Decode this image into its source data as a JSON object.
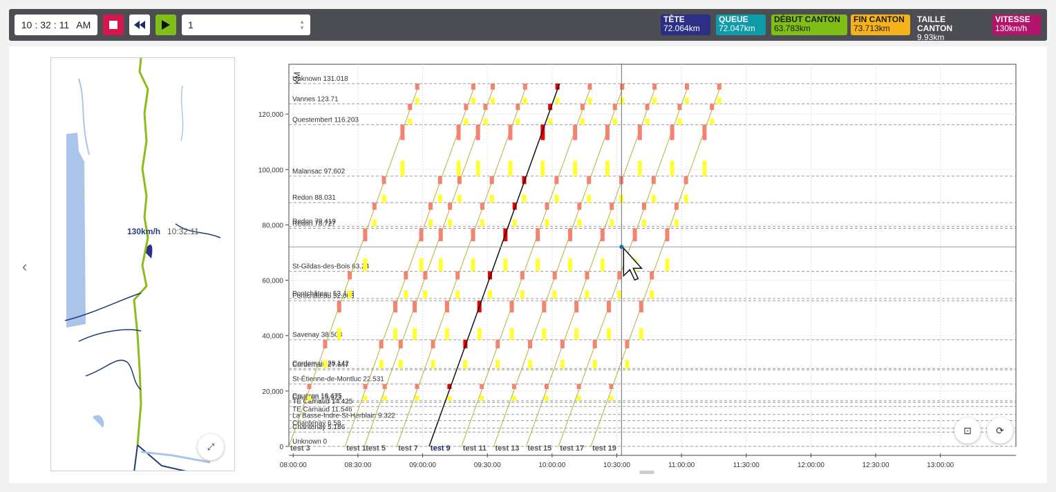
{
  "topbar": {
    "time": {
      "h": "10",
      "m": "32",
      "s": "11",
      "ampm": "AM"
    },
    "speed_value": "1",
    "badges": [
      {
        "label": "TÊTE",
        "value": "72.064km",
        "color": "#2b2f86"
      },
      {
        "label": "QUEUE",
        "value": "72.047km",
        "color": "#0f9aa8"
      },
      {
        "label": "DÉBUT CANTON",
        "value": "63.783km",
        "color": "#7fbf18",
        "text": "#1a1a1a"
      },
      {
        "label": "FIN CANTON",
        "value": "73.713km",
        "color": "#f6b21a",
        "text": "#1a1a1a"
      },
      {
        "label": "TAILLE CANTON",
        "value": "9.93km",
        "color": "transparent"
      },
      {
        "label": "VITESSE",
        "value": "130km/h",
        "color": "#b3156d"
      }
    ]
  },
  "map": {
    "speed": "130km/h",
    "time": "10:32:11"
  },
  "chart_data": {
    "type": "line",
    "ylabel": "KM",
    "ylim": [
      0,
      138000
    ],
    "yticks": [
      "0",
      "20,000",
      "40,000",
      "60,000",
      "80,000",
      "100,000",
      "120,000"
    ],
    "xticks": [
      "08:00:00",
      "08:30:00",
      "09:00:00",
      "09:30:00",
      "10:00:00",
      "10:30:00",
      "11:00:00",
      "11:30:00",
      "12:00:00",
      "12:30:00",
      "13:00:00"
    ],
    "xlim_minutes": [
      478,
      815
    ],
    "stations": [
      {
        "label": "Unknown 131.018",
        "km": 131.018
      },
      {
        "label": "Vannes 123.71",
        "km": 123.71
      },
      {
        "label": "Questembert 116.203",
        "km": 116.203
      },
      {
        "label": "Malansac 97.602",
        "km": 97.602
      },
      {
        "label": "Redon 88.031",
        "km": 88.031
      },
      {
        "label": "Redon 79.419",
        "km": 79.419
      },
      {
        "label": "Redon 78.727",
        "km": 78.727
      },
      {
        "label": "St-Gildas-des-Bois 63.24",
        "km": 63.24
      },
      {
        "label": "Pontchâteau 53.412",
        "km": 53.412
      },
      {
        "label": "Pontchâteau 52.603",
        "km": 52.603
      },
      {
        "label": "Savenay 38.508",
        "km": 38.508
      },
      {
        "label": "Cordemais 28.142",
        "km": 28.142
      },
      {
        "label": "Cordemais 27.647",
        "km": 27.647
      },
      {
        "label": "St-Étienne-de-Montluc 22.531",
        "km": 22.531
      },
      {
        "label": "Couëron 16.475",
        "km": 16.475
      },
      {
        "label": "Couëron 15.921",
        "km": 15.921
      },
      {
        "label": "TE Carnaud 14.425",
        "km": 14.425
      },
      {
        "label": "TE Carnaud 11.546",
        "km": 11.546
      },
      {
        "label": "La Basse-Indre-St-Herblain 9.322",
        "km": 9.322
      },
      {
        "label": "Chantenay 6.58",
        "km": 6.58
      },
      {
        "label": "Chantenay 5.186",
        "km": 5.186
      },
      {
        "label": "Unknown 0",
        "km": 0
      }
    ],
    "runs": [
      {
        "name": "test 3",
        "start": 478,
        "km_per_min": 2.167
      },
      {
        "name": "test 1",
        "start": 504,
        "km_per_min": 2.167
      },
      {
        "name": "test 5",
        "start": 513,
        "km_per_min": 2.167
      },
      {
        "name": "test 7",
        "start": 528,
        "km_per_min": 2.167
      },
      {
        "name": "test 9",
        "start": 543,
        "km_per_min": 2.167,
        "active": true
      },
      {
        "name": "test 11",
        "start": 558,
        "km_per_min": 2.167
      },
      {
        "name": "test 13",
        "start": 573,
        "km_per_min": 2.167
      },
      {
        "name": "test 15",
        "start": 588,
        "km_per_min": 2.167
      },
      {
        "name": "test 17",
        "start": 603,
        "km_per_min": 2.167
      },
      {
        "name": "test 19",
        "start": 618,
        "km_per_min": 2.167
      }
    ],
    "cursor": {
      "time": "10:32:11",
      "km": 72.064
    },
    "grid": true
  },
  "colors": {
    "block_red": "#ff7b7b",
    "block_active": "#ee0000",
    "yellow": "#ffff33",
    "green": "#7cf05a",
    "line": "#b8b03a"
  }
}
